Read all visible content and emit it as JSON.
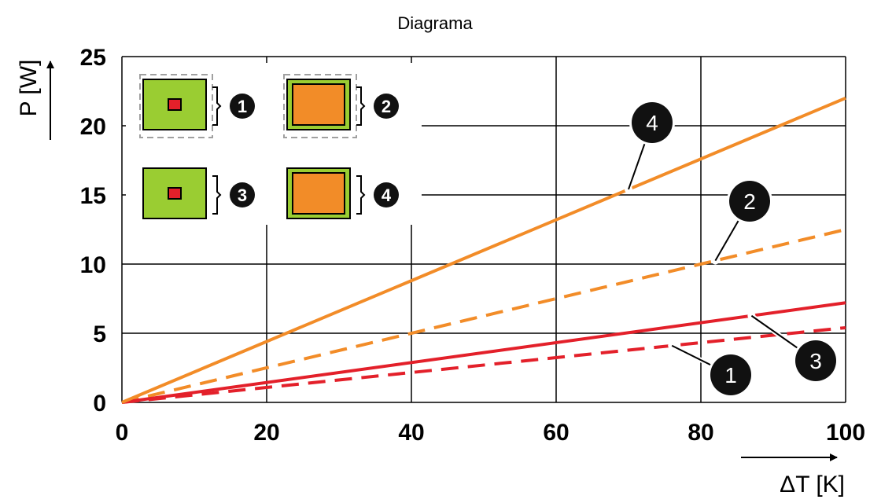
{
  "chart_data": {
    "type": "line",
    "title": "Diagrama",
    "xlabel": "ΔT [K]",
    "ylabel": "P [W]",
    "xlim": [
      0,
      100
    ],
    "ylim": [
      0,
      25
    ],
    "x_ticks": [
      "0",
      "20",
      "40",
      "60",
      "80",
      "100"
    ],
    "y_ticks": [
      "0",
      "5",
      "10",
      "15",
      "20",
      "25"
    ],
    "grid": true,
    "series": [
      {
        "name": "1",
        "style": "dashed",
        "color": "#e3202a",
        "x": [
          0,
          100
        ],
        "y": [
          0,
          5.4
        ]
      },
      {
        "name": "2",
        "style": "dashed",
        "color": "#f28c28",
        "x": [
          0,
          100
        ],
        "y": [
          0,
          12.5
        ]
      },
      {
        "name": "3",
        "style": "solid",
        "color": "#e3202a",
        "x": [
          0,
          100
        ],
        "y": [
          0,
          7.2
        ]
      },
      {
        "name": "4",
        "style": "solid",
        "color": "#f28c28",
        "x": [
          0,
          100
        ],
        "y": [
          0,
          22
        ]
      }
    ],
    "legend": {
      "placement": "top-left",
      "entries": [
        {
          "label": "1",
          "chip": "small",
          "chip_color": "#e3202a",
          "body_color": "#9acd32",
          "housing": "dashed-outline"
        },
        {
          "label": "2",
          "chip": "large",
          "chip_color": "#f28c28",
          "body_color": "#9acd32",
          "housing": "dashed-outline"
        },
        {
          "label": "3",
          "chip": "small",
          "chip_color": "#e3202a",
          "body_color": "#9acd32",
          "housing": "none"
        },
        {
          "label": "4",
          "chip": "large",
          "chip_color": "#f28c28",
          "body_color": "#9acd32",
          "housing": "none"
        }
      ]
    },
    "annotations": [
      {
        "label": "4",
        "series": "4",
        "at_x": 70
      },
      {
        "label": "2",
        "series": "2",
        "at_x": 82
      },
      {
        "label": "3",
        "series": "3",
        "at_x": 87
      },
      {
        "label": "1",
        "series": "1",
        "at_x": 76
      }
    ]
  }
}
